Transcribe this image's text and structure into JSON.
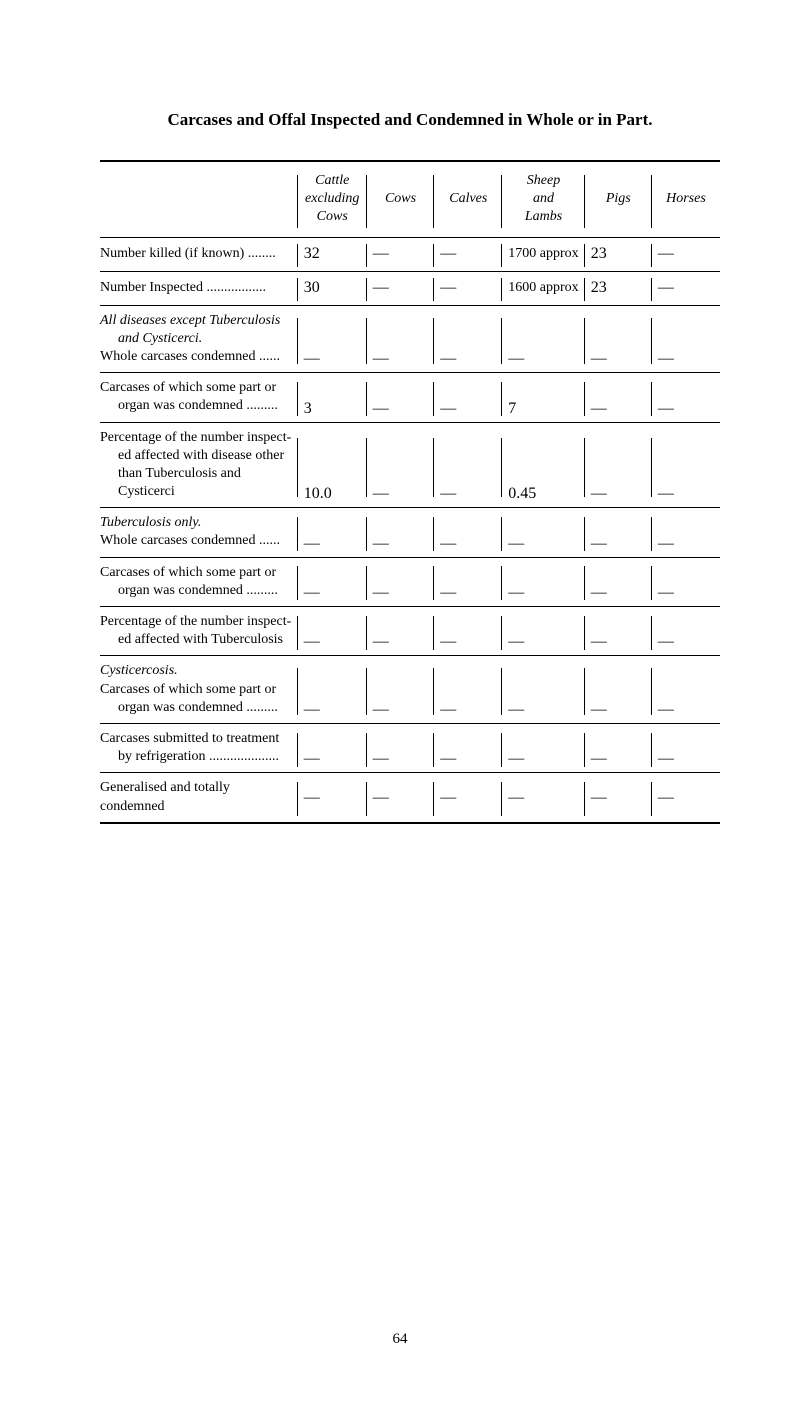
{
  "title": "Carcases and Offal Inspected and Condemned in Whole or in Part.",
  "columns": [
    "Cattle excluding Cows",
    "Cows",
    "Calves",
    "Sheep and Lambs",
    "Pigs",
    "Horses"
  ],
  "rows": [
    {
      "label": "Number killed (if known) ........",
      "cells": [
        "32",
        "—",
        "—",
        "1700 approx",
        "23",
        "—"
      ]
    },
    {
      "label": "Number Inspected  .................",
      "cells": [
        "30",
        "—",
        "—",
        "1600 approx",
        "23",
        "—"
      ]
    },
    {
      "label_html": "<span class='ital'>All diseases except Tuberculosis</span><br><span class='indent ital'>and Cysticerci.</span>Whole carcases condemned ......",
      "cells": [
        "—",
        "—",
        "—",
        "—",
        "—",
        "—"
      ]
    },
    {
      "label": "Carcases of which some part or\norgan was condemned .........",
      "cells": [
        "3",
        "—",
        "—",
        "7",
        "—",
        "—"
      ]
    },
    {
      "label": "Percentage of the number inspect-\ned affected with disease other\nthan Tuberculosis and Cysticerci",
      "cells": [
        "10.0",
        "—",
        "—",
        "0.45",
        "—",
        "—"
      ]
    },
    {
      "label_html": "<span class='ital'>Tuberculosis only.</span><br>Whole carcases condemned ......",
      "cells": [
        "—",
        "—",
        "—",
        "—",
        "—",
        "—"
      ]
    },
    {
      "label": "Carcases of which some part or\norgan was condemned .........",
      "cells": [
        "—",
        "—",
        "—",
        "—",
        "—",
        "—"
      ]
    },
    {
      "label": "Percentage of the number inspect-\ned affected with Tuberculosis",
      "cells": [
        "—",
        "—",
        "—",
        "—",
        "—",
        "—"
      ]
    },
    {
      "label_html": "<span class='ital'>Cysticercosis.</span><br>Carcases of which some part or<br><span class='indent'>organ was condemned .........</span>",
      "cells": [
        "—",
        "—",
        "—",
        "—",
        "—",
        "—"
      ]
    },
    {
      "label": "Carcases submitted to treatment\nby refrigeration ....................",
      "cells": [
        "—",
        "—",
        "—",
        "—",
        "—",
        "—"
      ]
    },
    {
      "label": "Generalised and totally condemned",
      "cells": [
        "—",
        "—",
        "—",
        "—",
        "—",
        "—"
      ]
    }
  ],
  "pageNumber": "64"
}
